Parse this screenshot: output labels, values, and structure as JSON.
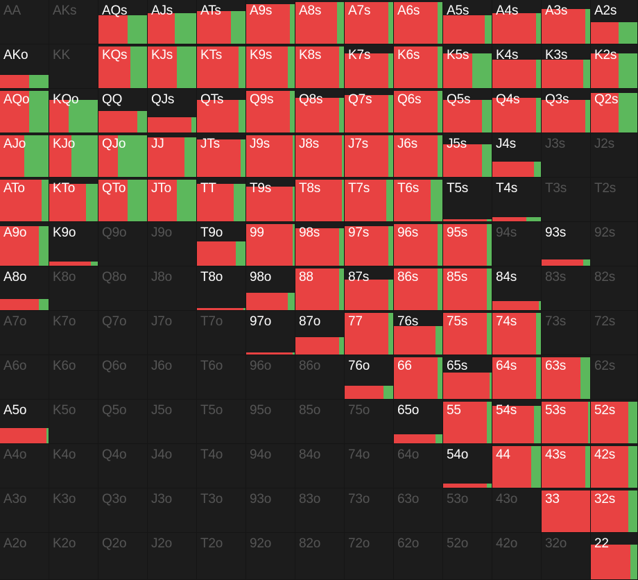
{
  "colors": {
    "raise": "#e84242",
    "call": "#5cb85c",
    "background": "#1c1c1c",
    "label_active": "#ffffff",
    "label_inactive": "#555555"
  },
  "rows": [
    [
      "AA",
      "AKs",
      "AQs",
      "AJs",
      "ATs",
      "A9s",
      "A8s",
      "A7s",
      "A6s",
      "A5s",
      "A4s",
      "A3s",
      "A2s"
    ],
    [
      "AKo",
      "KK",
      "KQs",
      "KJs",
      "KTs",
      "K9s",
      "K8s",
      "K7s",
      "K6s",
      "K5s",
      "K4s",
      "K3s",
      "K2s"
    ],
    [
      "AQo",
      "KQo",
      "QQ",
      "QJs",
      "QTs",
      "Q9s",
      "Q8s",
      "Q7s",
      "Q6s",
      "Q5s",
      "Q4s",
      "Q3s",
      "Q2s"
    ],
    [
      "AJo",
      "KJo",
      "QJo",
      "JJ",
      "JTs",
      "J9s",
      "J8s",
      "J7s",
      "J6s",
      "J5s",
      "J4s",
      "J3s",
      "J2s"
    ],
    [
      "ATo",
      "KTo",
      "QTo",
      "JTo",
      "TT",
      "T9s",
      "T8s",
      "T7s",
      "T6s",
      "T5s",
      "T4s",
      "T3s",
      "T2s"
    ],
    [
      "A9o",
      "K9o",
      "Q9o",
      "J9o",
      "T9o",
      "99",
      "98s",
      "97s",
      "96s",
      "95s",
      "94s",
      "93s",
      "92s"
    ],
    [
      "A8o",
      "K8o",
      "Q8o",
      "J8o",
      "T8o",
      "98o",
      "88",
      "87s",
      "86s",
      "85s",
      "84s",
      "83s",
      "82s"
    ],
    [
      "A7o",
      "K7o",
      "Q7o",
      "J7o",
      "T7o",
      "97o",
      "87o",
      "77",
      "76s",
      "75s",
      "74s",
      "73s",
      "72s"
    ],
    [
      "A6o",
      "K6o",
      "Q6o",
      "J6o",
      "T6o",
      "96o",
      "86o",
      "76o",
      "66",
      "65s",
      "64s",
      "63s",
      "62s"
    ],
    [
      "A5o",
      "K5o",
      "Q5o",
      "J5o",
      "T5o",
      "95o",
      "85o",
      "75o",
      "65o",
      "55",
      "54s",
      "53s",
      "52s"
    ],
    [
      "A4o",
      "K4o",
      "Q4o",
      "J4o",
      "T4o",
      "94o",
      "84o",
      "74o",
      "64o",
      "54o",
      "44",
      "43s",
      "42s"
    ],
    [
      "A3o",
      "K3o",
      "Q3o",
      "J3o",
      "T3o",
      "93o",
      "83o",
      "73o",
      "63o",
      "53o",
      "43o",
      "33",
      "32s"
    ],
    [
      "A2o",
      "K2o",
      "Q2o",
      "J2o",
      "T2o",
      "92o",
      "82o",
      "72o",
      "62o",
      "52o",
      "42o",
      "32o",
      "22"
    ]
  ],
  "frequency": [
    [
      [
        0,
        0
      ],
      [
        0,
        0
      ],
      [
        0.6,
        0.4
      ],
      [
        0.55,
        0.45
      ],
      [
        0.7,
        0.3
      ],
      [
        0.9,
        0.1
      ],
      [
        0.85,
        0.15
      ],
      [
        0.9,
        0.1
      ],
      [
        0.9,
        0.1
      ],
      [
        0.85,
        0.15
      ],
      [
        0.9,
        0.1
      ],
      [
        0.9,
        0.1
      ],
      [
        0.6,
        0.4
      ]
    ],
    [
      [
        0.6,
        0.4
      ],
      [
        0,
        0
      ],
      [
        0.65,
        0.35
      ],
      [
        0.6,
        0.4
      ],
      [
        0.85,
        0.15
      ],
      [
        0.85,
        0.15
      ],
      [
        0.9,
        0.1
      ],
      [
        0.9,
        0.1
      ],
      [
        0.9,
        0.1
      ],
      [
        0.6,
        0.4
      ],
      [
        0.9,
        0.1
      ],
      [
        0.85,
        0.15
      ],
      [
        0.6,
        0.4
      ]
    ],
    [
      [
        0.6,
        0.4
      ],
      [
        0.4,
        0.6
      ],
      [
        0.8,
        0.2
      ],
      [
        0.9,
        0.1
      ],
      [
        0.85,
        0.15
      ],
      [
        0.9,
        0.1
      ],
      [
        0.9,
        0.1
      ],
      [
        0.9,
        0.1
      ],
      [
        0.9,
        0.1
      ],
      [
        0.8,
        0.2
      ],
      [
        0.9,
        0.1
      ],
      [
        0.9,
        0.1
      ],
      [
        0.6,
        0.4
      ]
    ],
    [
      [
        0.5,
        0.5
      ],
      [
        0.45,
        0.55
      ],
      [
        0.4,
        0.6
      ],
      [
        0.75,
        0.25
      ],
      [
        0.9,
        0.1
      ],
      [
        0.95,
        0.05
      ],
      [
        0.95,
        0.05
      ],
      [
        0.9,
        0.1
      ],
      [
        0.9,
        0.1
      ],
      [
        0.8,
        0.2
      ],
      [
        0.85,
        0.15
      ],
      [
        0,
        0
      ],
      [
        0,
        0
      ]
    ],
    [
      [
        0.85,
        0.15
      ],
      [
        0.75,
        0.25
      ],
      [
        0.6,
        0.4
      ],
      [
        0.6,
        0.4
      ],
      [
        0.75,
        0.25
      ],
      [
        0.95,
        0.05
      ],
      [
        0.95,
        0.05
      ],
      [
        0.85,
        0.15
      ],
      [
        0.75,
        0.25
      ],
      [
        0.9,
        0.1
      ],
      [
        0.7,
        0.3
      ],
      [
        0,
        0
      ],
      [
        0,
        0
      ]
    ],
    [
      [
        0.8,
        0.2
      ],
      [
        0.85,
        0.15
      ],
      [
        0,
        0
      ],
      [
        0,
        0
      ],
      [
        0.8,
        0.2
      ],
      [
        0.95,
        0.05
      ],
      [
        0.9,
        0.1
      ],
      [
        0.9,
        0.1
      ],
      [
        0.9,
        0.1
      ],
      [
        0.9,
        0.1
      ],
      [
        0,
        0
      ],
      [
        0.85,
        0.15
      ],
      [
        0,
        0
      ]
    ],
    [
      [
        0.8,
        0.2
      ],
      [
        0,
        0
      ],
      [
        0,
        0
      ],
      [
        0,
        0
      ],
      [
        0.95,
        0.05
      ],
      [
        0.85,
        0.15
      ],
      [
        0.9,
        0.1
      ],
      [
        0.9,
        0.1
      ],
      [
        0.9,
        0.1
      ],
      [
        0.9,
        0.1
      ],
      [
        0.95,
        0.05
      ],
      [
        0,
        0
      ],
      [
        0,
        0
      ]
    ],
    [
      [
        0,
        0
      ],
      [
        0,
        0
      ],
      [
        0,
        0
      ],
      [
        0,
        0
      ],
      [
        0,
        0
      ],
      [
        0.95,
        0.05
      ],
      [
        0.9,
        0.1
      ],
      [
        0.9,
        0.1
      ],
      [
        0.85,
        0.15
      ],
      [
        0.9,
        0.1
      ],
      [
        0.9,
        0.1
      ],
      [
        0,
        0
      ],
      [
        0,
        0
      ]
    ],
    [
      [
        0,
        0
      ],
      [
        0,
        0
      ],
      [
        0,
        0
      ],
      [
        0,
        0
      ],
      [
        0,
        0
      ],
      [
        0,
        0
      ],
      [
        0,
        0
      ],
      [
        0.8,
        0.2
      ],
      [
        0.9,
        0.1
      ],
      [
        0.95,
        0.05
      ],
      [
        0.9,
        0.1
      ],
      [
        0.8,
        0.2
      ],
      [
        0,
        0
      ]
    ],
    [
      [
        0.95,
        0.05
      ],
      [
        0,
        0
      ],
      [
        0,
        0
      ],
      [
        0,
        0
      ],
      [
        0,
        0
      ],
      [
        0,
        0
      ],
      [
        0,
        0
      ],
      [
        0,
        0
      ],
      [
        0.85,
        0.15
      ],
      [
        0.9,
        0.1
      ],
      [
        0.85,
        0.15
      ],
      [
        0.95,
        0.05
      ],
      [
        0.8,
        0.2
      ]
    ],
    [
      [
        0,
        0
      ],
      [
        0,
        0
      ],
      [
        0,
        0
      ],
      [
        0,
        0
      ],
      [
        0,
        0
      ],
      [
        0,
        0
      ],
      [
        0,
        0
      ],
      [
        0,
        0
      ],
      [
        0,
        0
      ],
      [
        0.9,
        0.1
      ],
      [
        0.8,
        0.2
      ],
      [
        0.9,
        0.1
      ],
      [
        0.8,
        0.2
      ]
    ],
    [
      [
        0,
        0
      ],
      [
        0,
        0
      ],
      [
        0,
        0
      ],
      [
        0,
        0
      ],
      [
        0,
        0
      ],
      [
        0,
        0
      ],
      [
        0,
        0
      ],
      [
        0,
        0
      ],
      [
        0,
        0
      ],
      [
        0,
        0
      ],
      [
        0,
        0
      ],
      [
        1,
        0
      ],
      [
        0.8,
        0.2
      ]
    ],
    [
      [
        0,
        0
      ],
      [
        0,
        0
      ],
      [
        0,
        0
      ],
      [
        0,
        0
      ],
      [
        0,
        0
      ],
      [
        0,
        0
      ],
      [
        0,
        0
      ],
      [
        0,
        0
      ],
      [
        0,
        0
      ],
      [
        0,
        0
      ],
      [
        0,
        0
      ],
      [
        0,
        0
      ],
      [
        0.85,
        0.15
      ]
    ]
  ],
  "fill": [
    [
      0,
      0,
      0.65,
      0.7,
      0.75,
      0.9,
      0.95,
      0.95,
      0.95,
      0.65,
      0.7,
      0.8,
      0.5
    ],
    [
      0.3,
      0,
      0.95,
      0.95,
      0.95,
      0.95,
      0.95,
      0.8,
      0.95,
      0.8,
      0.65,
      0.65,
      0.8
    ],
    [
      0.95,
      0.75,
      0.5,
      0.35,
      0.75,
      0.95,
      0.8,
      0.85,
      0.95,
      0.75,
      0.8,
      0.75,
      0.9
    ],
    [
      0.95,
      0.95,
      0.95,
      0.9,
      0.85,
      0.95,
      0.95,
      0.95,
      0.95,
      0.75,
      0.35,
      0,
      0
    ],
    [
      0.95,
      0.85,
      0.95,
      0.95,
      0.85,
      0.8,
      0.95,
      0.95,
      0.95,
      0.05,
      0.1,
      0,
      0
    ],
    [
      0.9,
      0.1,
      0,
      0,
      0.55,
      0.95,
      0.85,
      0.9,
      0.95,
      0.95,
      0,
      0.15,
      0
    ],
    [
      0.25,
      0,
      0,
      0,
      0.05,
      0.4,
      0.95,
      0.7,
      0.95,
      0.95,
      0.2,
      0,
      0
    ],
    [
      0,
      0,
      0,
      0,
      0,
      0.05,
      0.4,
      0.95,
      0.65,
      0.95,
      0.95,
      0,
      0
    ],
    [
      0,
      0,
      0,
      0,
      0,
      0,
      0,
      0.3,
      0.95,
      0.6,
      0.95,
      0.95,
      0
    ],
    [
      0.35,
      0,
      0,
      0,
      0,
      0,
      0,
      0,
      0.2,
      0.95,
      0.85,
      0.95,
      0.95
    ],
    [
      0,
      0,
      0,
      0,
      0,
      0,
      0,
      0,
      0,
      0.1,
      0.95,
      0.95,
      0.95
    ],
    [
      0,
      0,
      0,
      0,
      0,
      0,
      0,
      0,
      0,
      0,
      0,
      0.95,
      0.95
    ],
    [
      0,
      0,
      0,
      0,
      0,
      0,
      0,
      0,
      0,
      0,
      0,
      0,
      0.75
    ]
  ]
}
